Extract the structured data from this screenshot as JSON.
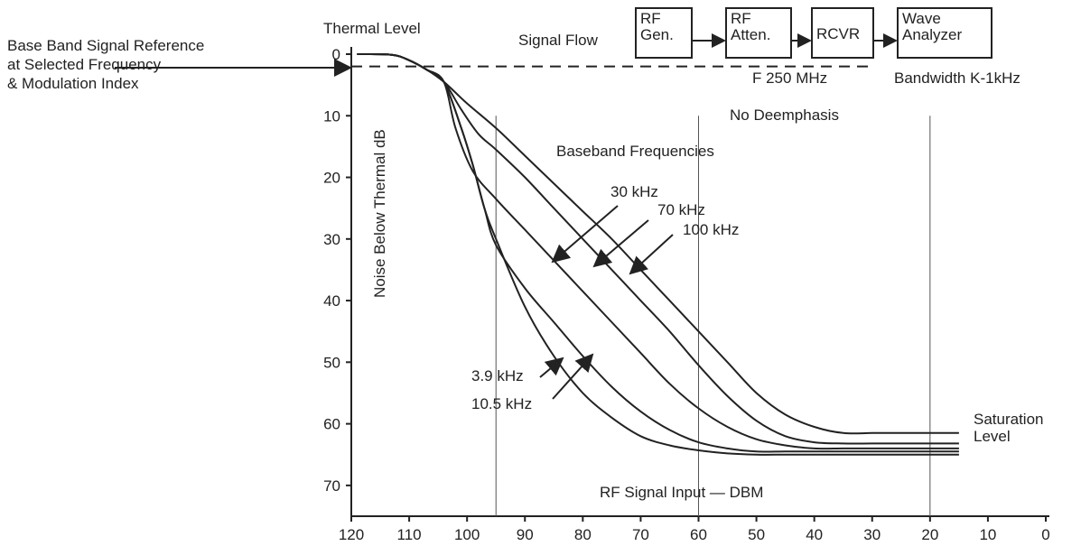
{
  "chart_data": {
    "type": "line",
    "xlabel": "RF Signal Input — DBM",
    "ylabel": "Noise Below Thermal dB",
    "xlim": [
      120,
      0
    ],
    "ylim": [
      0,
      75
    ],
    "x_reversed": true,
    "y_inverted": true,
    "x_ticks": [
      120,
      110,
      100,
      90,
      80,
      70,
      60,
      50,
      40,
      30,
      20,
      10,
      0
    ],
    "y_ticks": [
      0,
      10,
      20,
      30,
      40,
      50,
      60,
      70
    ],
    "vertical_markers": [
      95,
      60,
      20
    ],
    "reference_line_y": 2,
    "series": [
      {
        "name": "100 kHz",
        "x": [
          119,
          113,
          110,
          107,
          104,
          100,
          95,
          90,
          85,
          80,
          75,
          70,
          65,
          60,
          55,
          50,
          45,
          40,
          35,
          30,
          25,
          20,
          15
        ],
        "y": [
          0,
          0.1,
          1,
          2.5,
          4.5,
          8,
          12,
          16.5,
          21,
          25.5,
          30,
          35,
          40,
          45,
          50,
          55,
          58.5,
          60.5,
          61.5,
          61.5,
          61.5,
          61.5,
          61.5
        ]
      },
      {
        "name": "70 kHz",
        "x": [
          119,
          113,
          110,
          107,
          104,
          101,
          98,
          95,
          90,
          85,
          80,
          75,
          70,
          65,
          60,
          55,
          50,
          45,
          40,
          35,
          30,
          25,
          20,
          15
        ],
        "y": [
          0,
          0.1,
          1,
          2.5,
          4.5,
          9,
          13,
          15.5,
          20,
          25,
          30,
          35,
          40,
          45,
          50.5,
          55.5,
          59.5,
          62,
          63,
          63.2,
          63.2,
          63.2,
          63.2,
          63.2
        ]
      },
      {
        "name": "30 kHz",
        "x": [
          119,
          113,
          110,
          107,
          104,
          102,
          99,
          95,
          90,
          85,
          80,
          75,
          70,
          65,
          60,
          55,
          50,
          45,
          40,
          35,
          30,
          25,
          20,
          15
        ],
        "y": [
          0,
          0.1,
          1,
          2.5,
          4.5,
          12,
          19,
          23.5,
          28.5,
          33.5,
          38.5,
          43.5,
          48.5,
          53.5,
          57.5,
          60.5,
          62.5,
          63.5,
          64,
          64,
          64,
          64,
          64,
          64
        ]
      },
      {
        "name": "10.5 kHz",
        "x": [
          119,
          113,
          110,
          107,
          104,
          101,
          99,
          97,
          95,
          90,
          85,
          80,
          75,
          70,
          65,
          60,
          55,
          50,
          45,
          40,
          35,
          30,
          25,
          20,
          15
        ],
        "y": [
          0,
          0.1,
          1,
          2.5,
          4.5,
          12,
          18,
          25,
          31,
          38,
          43.5,
          49,
          54,
          58,
          61,
          63,
          64,
          64.5,
          64.5,
          64.5,
          64.5,
          64.5,
          64.5,
          64.5,
          64.5
        ]
      },
      {
        "name": "3.9 kHz",
        "x": [
          119,
          113,
          110,
          107,
          104,
          101,
          99,
          97,
          95,
          90,
          85,
          80,
          75,
          70,
          65,
          60,
          55,
          50,
          45,
          40,
          35,
          30,
          25,
          20,
          15
        ],
        "y": [
          0,
          0.1,
          1,
          2.5,
          4.5,
          12,
          18,
          25,
          30,
          41,
          49,
          55,
          59,
          62,
          63.5,
          64.3,
          64.8,
          65,
          65,
          65,
          65,
          65,
          65,
          65,
          65
        ]
      }
    ],
    "annotations": {
      "thermal_level": "Thermal Level",
      "baseband_title": "Baseband Frequencies",
      "saturation": [
        "Saturation",
        "Level"
      ],
      "f_label": "F 250 MHz",
      "bandwidth": "Bandwidth K-1kHz",
      "deemphasis": "No Deemphasis",
      "reference": [
        "Base Band Signal Reference",
        "at Selected Frequency",
        "& Modulation Index"
      ],
      "series_labels": {
        "l30": "30 kHz",
        "l70": "70 kHz",
        "l100": "100 kHz",
        "l39": "3.9 kHz",
        "l105": "10.5 kHz"
      }
    }
  },
  "signal_flow": {
    "label": "Signal Flow",
    "boxes": [
      [
        "RF",
        "Gen."
      ],
      [
        "RF",
        "Atten."
      ],
      [
        "RCVR"
      ],
      [
        "Wave",
        "Analyzer"
      ]
    ]
  }
}
